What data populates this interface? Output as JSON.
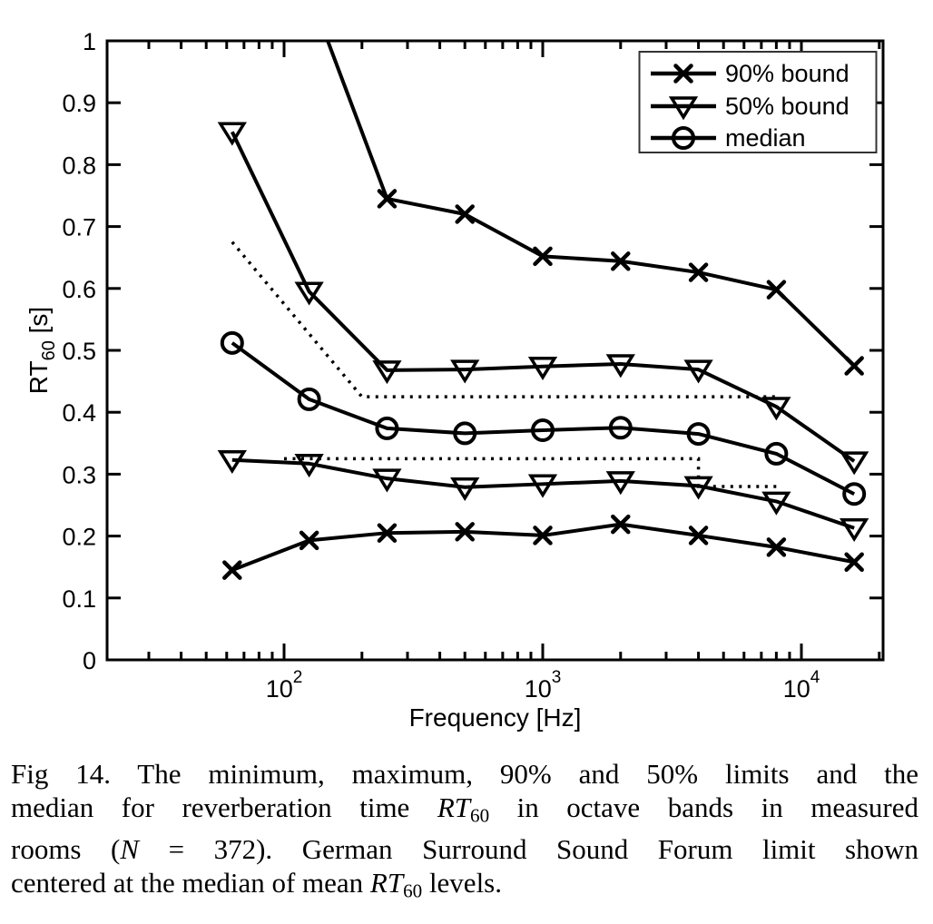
{
  "figure": {
    "caption_lines": [
      {
        "justify": true,
        "segments": [
          {
            "text": "Fig 14. The minimum, maximum, 90% and 50% limits and the"
          }
        ]
      },
      {
        "justify": true,
        "segments": [
          {
            "text": "median for reverberation time "
          },
          {
            "text": "RT",
            "style": "italic"
          },
          {
            "text": "60",
            "style": "subscript"
          },
          {
            "text": " in octave bands in measured"
          }
        ]
      },
      {
        "justify": true,
        "segments": [
          {
            "text": "rooms ("
          },
          {
            "text": "N",
            "style": "italic"
          },
          {
            "text": " = 372). German Surround Sound Forum limit shown"
          }
        ]
      },
      {
        "justify": false,
        "segments": [
          {
            "text": "centered at the median of mean "
          },
          {
            "text": "RT",
            "style": "italic"
          },
          {
            "text": "60",
            "style": "subscript"
          },
          {
            "text": " levels."
          }
        ]
      }
    ]
  },
  "chart_data": {
    "type": "line",
    "title": "",
    "xlabel": "Frequency [Hz]",
    "ylabel_segments": [
      {
        "text": "RT"
      },
      {
        "text": "60",
        "style": "subscript"
      },
      {
        "text": " [s]"
      }
    ],
    "x_scale": "log",
    "xlim": [
      20.7,
      20700
    ],
    "ylim": [
      0,
      1
    ],
    "grid": false,
    "background": "#ffffff",
    "line_color": "#000000",
    "x_major_ticks": [
      100,
      1000,
      10000
    ],
    "x_major_tick_labels": [
      {
        "base": "10",
        "exp": "2"
      },
      {
        "base": "10",
        "exp": "3"
      },
      {
        "base": "10",
        "exp": "4"
      }
    ],
    "x_minor_ticks": [
      30,
      40,
      50,
      60,
      70,
      80,
      90,
      200,
      300,
      400,
      500,
      600,
      700,
      800,
      900,
      2000,
      3000,
      4000,
      5000,
      6000,
      7000,
      8000,
      9000,
      20000
    ],
    "y_ticks": [
      0,
      0.1,
      0.2,
      0.3,
      0.4,
      0.5,
      0.6,
      0.7,
      0.8,
      0.9,
      1
    ],
    "y_tick_labels": [
      "0",
      "0.1",
      "0.2",
      "0.3",
      "0.4",
      "0.5",
      "0.6",
      "0.7",
      "0.8",
      "0.9",
      "1"
    ],
    "categories_hz": [
      63,
      125,
      250,
      500,
      1000,
      2000,
      4000,
      8000,
      16000
    ],
    "series": [
      {
        "id": "90-bound-upper",
        "legend_label": "90% bound",
        "marker": "x",
        "values": [
          null,
          1.08,
          0.745,
          0.72,
          0.652,
          0.644,
          0.626,
          0.598,
          0.475
        ],
        "note": "values at 63 and 125 Hz lie above the y-axis range; curve enters the plot from the top near 155 Hz"
      },
      {
        "id": "50-bound-upper",
        "legend_label": "50% bound",
        "marker": "triangle-down",
        "values": [
          0.853,
          0.595,
          0.468,
          0.469,
          0.474,
          0.478,
          0.469,
          0.409,
          0.321
        ]
      },
      {
        "id": "median",
        "legend_label": "median",
        "marker": "circle",
        "values": [
          0.512,
          0.421,
          0.374,
          0.366,
          0.371,
          0.375,
          0.365,
          0.333,
          0.268
        ]
      },
      {
        "id": "50-bound-lower",
        "legend_label": null,
        "marker": "triangle-down",
        "values": [
          0.323,
          0.317,
          0.293,
          0.279,
          0.284,
          0.289,
          0.281,
          0.256,
          0.213
        ]
      },
      {
        "id": "90-bound-lower",
        "legend_label": null,
        "marker": "x",
        "values": [
          0.145,
          0.193,
          0.205,
          0.207,
          0.201,
          0.219,
          0.201,
          0.182,
          0.158
        ]
      }
    ],
    "limit_lines": {
      "name": "German Surround Sound Forum limit",
      "style": "dotted",
      "upper": [
        [
          63,
          0.675
        ],
        [
          200,
          0.425
        ],
        [
          8000,
          0.425
        ]
      ],
      "lower": [
        [
          100,
          0.325
        ],
        [
          4000,
          0.325
        ],
        [
          4000,
          0.28
        ],
        [
          8000,
          0.28
        ]
      ]
    },
    "legend": {
      "position": "top-right",
      "entries": [
        {
          "label": "90% bound",
          "marker": "x"
        },
        {
          "label": "50% bound",
          "marker": "triangle-down"
        },
        {
          "label": "median",
          "marker": "circle"
        }
      ]
    }
  }
}
